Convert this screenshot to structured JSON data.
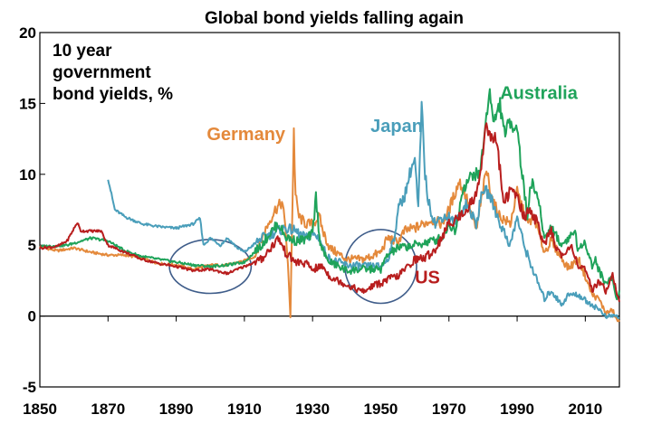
{
  "chart_data": {
    "type": "line",
    "title": "Global bond yields falling again",
    "annotation": [
      "10 year",
      "government",
      "bond yields, %"
    ],
    "xlim": [
      1850,
      2020
    ],
    "ylim": [
      -5,
      20
    ],
    "x_ticks": [
      "1850",
      "1870",
      "1890",
      "1910",
      "1930",
      "1950",
      "1970",
      "1990",
      "2010"
    ],
    "y_ticks": [
      "-5",
      "0",
      "5",
      "10",
      "15",
      "20"
    ],
    "grid": false,
    "legend": "inline",
    "highlight_ellipses": [
      {
        "center": [
          1900,
          3.5
        ],
        "radius_x_years": 12,
        "radius_y_pct": 1.9
      },
      {
        "center": [
          1950,
          3.5
        ],
        "radius_x_years": 10.5,
        "radius_y_pct": 2.6
      }
    ],
    "series": [
      {
        "name": "Germany",
        "color": "#E4893B",
        "label_at": [
          1922,
          12.4
        ],
        "label_anchor": "end",
        "points": [
          [
            1850,
            4.9
          ],
          [
            1855,
            4.6
          ],
          [
            1860,
            4.8
          ],
          [
            1865,
            4.5
          ],
          [
            1870,
            4.3
          ],
          [
            1875,
            4.3
          ],
          [
            1880,
            4.1
          ],
          [
            1885,
            3.7
          ],
          [
            1890,
            3.6
          ],
          [
            1895,
            3.3
          ],
          [
            1900,
            3.6
          ],
          [
            1905,
            3.6
          ],
          [
            1910,
            3.9
          ],
          [
            1913,
            4.2
          ],
          [
            1916,
            6.0
          ],
          [
            1919,
            7.5
          ],
          [
            1921,
            8.0
          ],
          [
            1922,
            6.5
          ],
          [
            1923,
            2.5
          ],
          [
            1923.5,
            0
          ],
          [
            1924,
            6.5
          ],
          [
            1924.5,
            13.0
          ],
          [
            1925,
            8.5
          ],
          [
            1926,
            7.0
          ],
          [
            1928,
            6.5
          ],
          [
            1930,
            6.5
          ],
          [
            1932,
            7.0
          ],
          [
            1933,
            6.0
          ],
          [
            1935,
            4.8
          ],
          [
            1940,
            4.0
          ],
          [
            1945,
            4.0
          ],
          [
            1950,
            4.5
          ],
          [
            1952,
            5.5
          ],
          [
            1955,
            5.2
          ],
          [
            1957,
            6.0
          ],
          [
            1960,
            6.2
          ],
          [
            1965,
            6.8
          ],
          [
            1968,
            6.5
          ],
          [
            1970,
            7.5
          ],
          [
            1973,
            9.5
          ],
          [
            1975,
            8.5
          ],
          [
            1978,
            6.0
          ],
          [
            1981,
            10.3
          ],
          [
            1983,
            8.0
          ],
          [
            1985,
            7.0
          ],
          [
            1988,
            6.5
          ],
          [
            1990,
            8.8
          ],
          [
            1993,
            6.5
          ],
          [
            1995,
            7.0
          ],
          [
            1998,
            4.5
          ],
          [
            2000,
            5.3
          ],
          [
            2003,
            4.1
          ],
          [
            2005,
            3.4
          ],
          [
            2008,
            4.0
          ],
          [
            2010,
            2.8
          ],
          [
            2012,
            1.5
          ],
          [
            2014,
            1.2
          ],
          [
            2016,
            0.2
          ],
          [
            2018,
            0.4
          ],
          [
            2019,
            -0.2
          ],
          [
            2020,
            -0.4
          ]
        ]
      },
      {
        "name": "Japan",
        "color": "#4A9EBA",
        "label_at": [
          1947,
          13.0
        ],
        "label_anchor": "start",
        "points": [
          [
            1870,
            9.7
          ],
          [
            1872,
            7.5
          ],
          [
            1875,
            7.0
          ],
          [
            1880,
            6.5
          ],
          [
            1885,
            6.3
          ],
          [
            1890,
            6.2
          ],
          [
            1895,
            6.5
          ],
          [
            1897,
            6.9
          ],
          [
            1898,
            5.0
          ],
          [
            1900,
            5.5
          ],
          [
            1903,
            5.0
          ],
          [
            1905,
            5.5
          ],
          [
            1908,
            4.8
          ],
          [
            1910,
            4.5
          ],
          [
            1915,
            5.5
          ],
          [
            1920,
            6.0
          ],
          [
            1922,
            6.2
          ],
          [
            1925,
            6.0
          ],
          [
            1928,
            5.5
          ],
          [
            1930,
            5.8
          ],
          [
            1932,
            5.5
          ],
          [
            1933,
            4.8
          ],
          [
            1935,
            4.0
          ],
          [
            1940,
            3.6
          ],
          [
            1945,
            3.5
          ],
          [
            1948,
            3.5
          ],
          [
            1950,
            3.5
          ],
          [
            1952,
            4.0
          ],
          [
            1954,
            5.5
          ],
          [
            1955,
            7.5
          ],
          [
            1957,
            8.5
          ],
          [
            1959,
            10.5
          ],
          [
            1960,
            11.0
          ],
          [
            1961,
            7.5
          ],
          [
            1962,
            14.8
          ],
          [
            1963,
            10.0
          ],
          [
            1964,
            8.0
          ],
          [
            1966,
            6.5
          ],
          [
            1968,
            7.0
          ],
          [
            1970,
            7.0
          ],
          [
            1972,
            6.5
          ],
          [
            1975,
            8.0
          ],
          [
            1978,
            6.5
          ],
          [
            1980,
            9.0
          ],
          [
            1982,
            8.5
          ],
          [
            1985,
            6.5
          ],
          [
            1988,
            5.0
          ],
          [
            1990,
            7.0
          ],
          [
            1992,
            5.0
          ],
          [
            1995,
            3.0
          ],
          [
            1998,
            1.2
          ],
          [
            2000,
            1.8
          ],
          [
            2003,
            0.8
          ],
          [
            2005,
            1.5
          ],
          [
            2008,
            1.5
          ],
          [
            2010,
            1.1
          ],
          [
            2012,
            0.8
          ],
          [
            2015,
            0.3
          ],
          [
            2016,
            -0.1
          ],
          [
            2018,
            0.05
          ],
          [
            2020,
            -0.1
          ]
        ]
      },
      {
        "name": "Australia",
        "color": "#1FA35A",
        "label_at": [
          1985,
          15.3
        ],
        "label_anchor": "start",
        "points": [
          [
            1850,
            4.9
          ],
          [
            1858,
            5.0
          ],
          [
            1865,
            5.5
          ],
          [
            1870,
            5.3
          ],
          [
            1875,
            4.6
          ],
          [
            1880,
            4.2
          ],
          [
            1885,
            4.0
          ],
          [
            1890,
            3.8
          ],
          [
            1895,
            3.6
          ],
          [
            1900,
            3.5
          ],
          [
            1905,
            3.6
          ],
          [
            1910,
            3.8
          ],
          [
            1915,
            5.0
          ],
          [
            1918,
            6.0
          ],
          [
            1920,
            6.5
          ],
          [
            1922,
            5.6
          ],
          [
            1925,
            5.3
          ],
          [
            1928,
            5.4
          ],
          [
            1930,
            5.8
          ],
          [
            1931,
            8.5
          ],
          [
            1932,
            5.5
          ],
          [
            1934,
            4.0
          ],
          [
            1936,
            3.7
          ],
          [
            1940,
            3.2
          ],
          [
            1945,
            3.3
          ],
          [
            1950,
            3.3
          ],
          [
            1952,
            4.3
          ],
          [
            1955,
            4.8
          ],
          [
            1960,
            5.0
          ],
          [
            1965,
            5.3
          ],
          [
            1968,
            5.5
          ],
          [
            1970,
            6.5
          ],
          [
            1972,
            6.0
          ],
          [
            1974,
            9.0
          ],
          [
            1977,
            10.0
          ],
          [
            1979,
            10.0
          ],
          [
            1981,
            14.0
          ],
          [
            1982,
            16.2
          ],
          [
            1983,
            13.5
          ],
          [
            1985,
            15.0
          ],
          [
            1986,
            13.0
          ],
          [
            1988,
            13.5
          ],
          [
            1990,
            13.5
          ],
          [
            1991,
            11.0
          ],
          [
            1993,
            7.0
          ],
          [
            1994,
            9.5
          ],
          [
            1996,
            8.5
          ],
          [
            1998,
            5.5
          ],
          [
            2000,
            6.3
          ],
          [
            2003,
            5.0
          ],
          [
            2005,
            5.5
          ],
          [
            2007,
            6.0
          ],
          [
            2008,
            4.5
          ],
          [
            2010,
            5.3
          ],
          [
            2012,
            3.5
          ],
          [
            2013,
            4.0
          ],
          [
            2014,
            3.2
          ],
          [
            2016,
            2.3
          ],
          [
            2018,
            2.7
          ],
          [
            2019,
            1.2
          ],
          [
            2020,
            1.8
          ]
        ]
      },
      {
        "name": "US",
        "color": "#B81E1E",
        "label_at": [
          1960,
          2.3
        ],
        "label_anchor": "start",
        "points": [
          [
            1850,
            4.8
          ],
          [
            1855,
            4.9
          ],
          [
            1858,
            5.3
          ],
          [
            1861,
            6.6
          ],
          [
            1862,
            6.0
          ],
          [
            1865,
            6.0
          ],
          [
            1868,
            6.0
          ],
          [
            1870,
            5.0
          ],
          [
            1875,
            4.5
          ],
          [
            1880,
            4.0
          ],
          [
            1885,
            3.7
          ],
          [
            1890,
            3.5
          ],
          [
            1895,
            3.2
          ],
          [
            1900,
            3.3
          ],
          [
            1905,
            3.0
          ],
          [
            1910,
            3.5
          ],
          [
            1915,
            4.0
          ],
          [
            1920,
            5.5
          ],
          [
            1922,
            4.5
          ],
          [
            1925,
            3.8
          ],
          [
            1928,
            3.7
          ],
          [
            1930,
            3.3
          ],
          [
            1933,
            3.5
          ],
          [
            1935,
            2.8
          ],
          [
            1940,
            2.2
          ],
          [
            1945,
            1.7
          ],
          [
            1948,
            2.2
          ],
          [
            1950,
            2.3
          ],
          [
            1953,
            2.7
          ],
          [
            1955,
            2.8
          ],
          [
            1958,
            3.5
          ],
          [
            1960,
            4.0
          ],
          [
            1963,
            4.1
          ],
          [
            1966,
            4.7
          ],
          [
            1970,
            6.5
          ],
          [
            1973,
            7.0
          ],
          [
            1975,
            7.5
          ],
          [
            1978,
            8.5
          ],
          [
            1980,
            11.5
          ],
          [
            1981,
            14.0
          ],
          [
            1982,
            12.5
          ],
          [
            1984,
            12.5
          ],
          [
            1986,
            8.0
          ],
          [
            1988,
            8.8
          ],
          [
            1990,
            8.5
          ],
          [
            1992,
            7.0
          ],
          [
            1994,
            7.5
          ],
          [
            1996,
            6.5
          ],
          [
            1998,
            5.0
          ],
          [
            2000,
            6.0
          ],
          [
            2002,
            4.5
          ],
          [
            2004,
            4.3
          ],
          [
            2006,
            5.0
          ],
          [
            2008,
            3.5
          ],
          [
            2010,
            3.2
          ],
          [
            2012,
            1.8
          ],
          [
            2014,
            2.5
          ],
          [
            2016,
            1.8
          ],
          [
            2018,
            3.0
          ],
          [
            2019,
            1.8
          ],
          [
            2020,
            1.0
          ]
        ]
      }
    ]
  }
}
